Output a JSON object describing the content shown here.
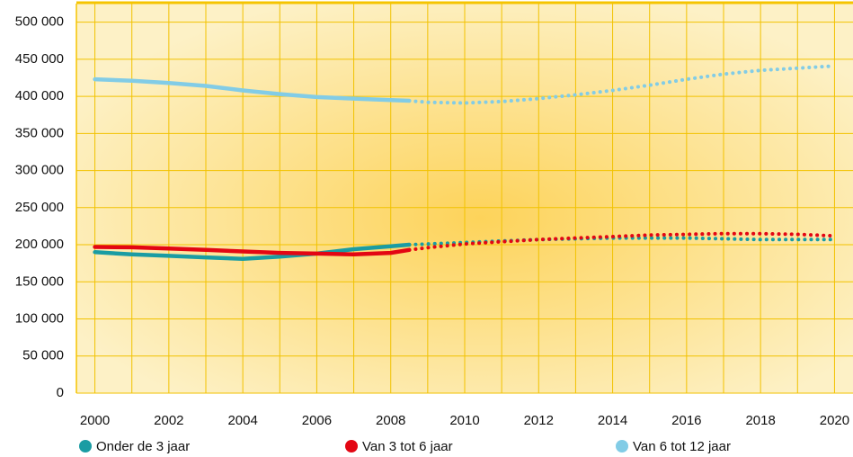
{
  "chart_data": {
    "type": "line",
    "x": [
      2000,
      2001,
      2002,
      2003,
      2004,
      2005,
      2006,
      2007,
      2008,
      2008.5,
      2009,
      2010,
      2011,
      2012,
      2013,
      2014,
      2015,
      2016,
      2017,
      2018,
      2019,
      2020
    ],
    "xlim": [
      1999.5,
      2020.5
    ],
    "xticks": [
      2000,
      2002,
      2004,
      2006,
      2008,
      2010,
      2012,
      2014,
      2016,
      2018,
      2020
    ],
    "ylim": [
      0,
      525000
    ],
    "yticks": [
      0,
      {
        "value": 50000,
        "label": "50 000"
      },
      {
        "value": 100000,
        "label": "100 000"
      },
      {
        "value": 150000,
        "label": "150 000"
      },
      {
        "value": 200000,
        "label": "200 000"
      },
      {
        "value": 250000,
        "label": "250 000"
      },
      {
        "value": 300000,
        "label": "300 000"
      },
      {
        "value": 350000,
        "label": "350 000"
      },
      {
        "value": 400000,
        "label": "400 000"
      },
      {
        "value": 450000,
        "label": "450 000"
      },
      {
        "value": 500000,
        "label": "500 000"
      }
    ],
    "grid": true,
    "legend": "bottom",
    "series": [
      {
        "name": "Onder de 3 jaar",
        "color": "#1a9ca3",
        "values": [
          190000,
          187000,
          185000,
          183000,
          181000,
          184000,
          188000,
          194000,
          198000,
          200000,
          null,
          null,
          null,
          null,
          null,
          null,
          null,
          null,
          null,
          null,
          null,
          null
        ],
        "projected_values": [
          null,
          null,
          null,
          null,
          null,
          null,
          null,
          null,
          null,
          200000,
          201000,
          203000,
          205000,
          207000,
          208000,
          209000,
          209000,
          209000,
          208000,
          207000,
          207000,
          207000
        ]
      },
      {
        "name": "Van 3 tot 6 jaar",
        "color": "#e30613",
        "values": [
          197000,
          196500,
          195000,
          193000,
          191000,
          189000,
          188000,
          187000,
          189000,
          193000,
          null,
          null,
          null,
          null,
          null,
          null,
          null,
          null,
          null,
          null,
          null,
          null
        ],
        "projected_values": [
          null,
          null,
          null,
          null,
          null,
          null,
          null,
          null,
          null,
          193000,
          196000,
          201000,
          204000,
          207000,
          209000,
          211000,
          213000,
          214000,
          215000,
          215000,
          214000,
          212000
        ]
      },
      {
        "name": "Van 6 tot 12 jaar",
        "color": "#82cce6",
        "values": [
          423000,
          421000,
          418000,
          414000,
          408000,
          403000,
          399000,
          397000,
          395000,
          394000,
          null,
          null,
          null,
          null,
          null,
          null,
          null,
          null,
          null,
          null,
          null,
          null
        ],
        "projected_values": [
          null,
          null,
          null,
          null,
          null,
          null,
          null,
          null,
          null,
          394000,
          392000,
          391000,
          393000,
          397000,
          402000,
          408000,
          415000,
          423000,
          430000,
          435000,
          438000,
          441000
        ]
      }
    ]
  }
}
